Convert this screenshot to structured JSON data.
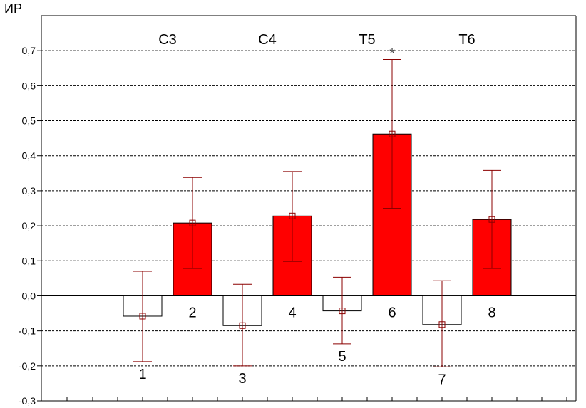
{
  "chart_data": {
    "type": "bar",
    "ylabel": "ИР",
    "ylim": [
      -0.3,
      0.8
    ],
    "yticks": [
      {
        "value": -0.3,
        "label": "-0,3"
      },
      {
        "value": -0.2,
        "label": "-0,2"
      },
      {
        "value": -0.1,
        "label": "-0,1"
      },
      {
        "value": 0.0,
        "label": "0,0"
      },
      {
        "value": 0.1,
        "label": "0,1"
      },
      {
        "value": 0.2,
        "label": "0,2"
      },
      {
        "value": 0.3,
        "label": "0,3"
      },
      {
        "value": 0.4,
        "label": "0,4"
      },
      {
        "value": 0.5,
        "label": "0,5"
      },
      {
        "value": 0.6,
        "label": "0,6"
      },
      {
        "value": 0.7,
        "label": "0,7"
      }
    ],
    "grid": "horizontal dashed",
    "groups": [
      "C3",
      "C4",
      "T5",
      "T6"
    ],
    "bars": [
      {
        "label": "1",
        "group": "C3",
        "value": -0.058,
        "err_low": -0.188,
        "err_high": 0.07,
        "color": "#ffffff"
      },
      {
        "label": "2",
        "group": "C3",
        "value": 0.208,
        "err_low": 0.078,
        "err_high": 0.338,
        "color": "#ff0000"
      },
      {
        "label": "3",
        "group": "C4",
        "value": -0.085,
        "err_low": -0.2,
        "err_high": 0.033,
        "color": "#ffffff"
      },
      {
        "label": "4",
        "group": "C4",
        "value": 0.228,
        "err_low": 0.098,
        "err_high": 0.355,
        "color": "#ff0000"
      },
      {
        "label": "5",
        "group": "T5",
        "value": -0.043,
        "err_low": -0.137,
        "err_high": 0.053,
        "color": "#ffffff"
      },
      {
        "label": "6",
        "group": "T5",
        "value": 0.462,
        "err_low": 0.25,
        "err_high": 0.675,
        "color": "#ff0000",
        "annotation": "*"
      },
      {
        "label": "7",
        "group": "T6",
        "value": -0.082,
        "err_low": -0.203,
        "err_high": 0.043,
        "color": "#ffffff"
      },
      {
        "label": "8",
        "group": "T6",
        "value": 0.218,
        "err_low": 0.078,
        "err_high": 0.358,
        "color": "#ff0000"
      }
    ],
    "colors": {
      "highlight": "#ff0000",
      "plain": "#ffffff",
      "error_bar": "#8b0000",
      "grid": "#000000"
    }
  }
}
